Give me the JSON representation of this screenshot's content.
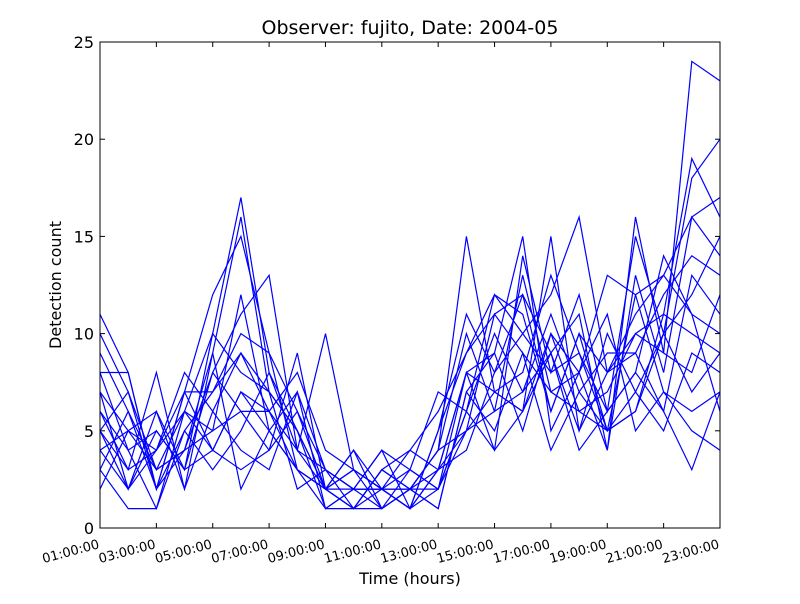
{
  "chart_data": {
    "type": "line",
    "title": "Observer: fujito, Date: 2004-05",
    "xlabel": "Time (hours)",
    "ylabel": "Detection count",
    "x_ticks": [
      "01:00:00",
      "03:00:00",
      "05:00:00",
      "07:00:00",
      "09:00:00",
      "11:00:00",
      "13:00:00",
      "15:00:00",
      "17:00:00",
      "19:00:00",
      "21:00:00",
      "23:00:00"
    ],
    "y_ticks": [
      0,
      5,
      10,
      15,
      20,
      25
    ],
    "xlim": [
      1,
      23
    ],
    "ylim": [
      0,
      25
    ],
    "grid": false,
    "legend": "none",
    "line_color": "#0000ff",
    "x": [
      1,
      2,
      3,
      4,
      5,
      6,
      7,
      8,
      9,
      10,
      11,
      12,
      13,
      14,
      15,
      16,
      17,
      18,
      19,
      20,
      21,
      22,
      23
    ],
    "series": [
      {
        "values": [
          11,
          8,
          2,
          4,
          9,
          16,
          7,
          5,
          2,
          3,
          1,
          2,
          1,
          7,
          9,
          15,
          5,
          8,
          4,
          16,
          9,
          24,
          23
        ]
      },
      {
        "values": [
          10,
          7,
          3,
          6,
          10,
          17,
          8,
          5,
          2,
          1,
          3,
          2,
          2,
          6,
          12,
          10,
          8,
          9,
          6,
          15,
          10,
          18,
          20
        ]
      },
      {
        "values": [
          8,
          8,
          2,
          7,
          12,
          15,
          9,
          6,
          3,
          2,
          2,
          1,
          3,
          5,
          11,
          9,
          7,
          6,
          5,
          12,
          13,
          16,
          17
        ]
      },
      {
        "values": [
          7,
          2,
          6,
          3,
          8,
          11,
          13,
          4,
          2,
          4,
          1,
          3,
          2,
          8,
          7,
          6,
          15,
          5,
          8,
          10,
          11,
          19,
          16
        ]
      },
      {
        "values": [
          6,
          4,
          1,
          5,
          7,
          10,
          9,
          3,
          1,
          2,
          4,
          1,
          5,
          11,
          8,
          12,
          9,
          11,
          4,
          13,
          8,
          16,
          14
        ]
      },
      {
        "values": [
          5,
          3,
          8,
          2,
          6,
          9,
          6,
          8,
          4,
          3,
          2,
          2,
          4,
          10,
          6,
          7,
          11,
          7,
          9,
          9,
          12,
          14,
          13
        ]
      },
      {
        "values": [
          4,
          2,
          5,
          3,
          10,
          8,
          7,
          2,
          3,
          1,
          3,
          4,
          6,
          9,
          12,
          11,
          6,
          10,
          5,
          7,
          10,
          12,
          15
        ]
      },
      {
        "values": [
          3,
          1,
          1,
          6,
          5,
          12,
          5,
          7,
          1,
          2,
          2,
          3,
          7,
          6,
          4,
          14,
          8,
          12,
          6,
          8,
          14,
          11,
          10
        ]
      },
      {
        "values": [
          2,
          5,
          4,
          7,
          4,
          7,
          6,
          3,
          2,
          4,
          2,
          1,
          3,
          8,
          9,
          5,
          10,
          6,
          7,
          10,
          9,
          8,
          12
        ]
      },
      {
        "values": [
          9,
          6,
          3,
          4,
          8,
          6,
          4,
          6,
          2,
          1,
          1,
          2,
          4,
          15,
          7,
          8,
          13,
          9,
          5,
          6,
          11,
          10,
          9
        ]
      },
      {
        "values": [
          5,
          7,
          2,
          5,
          3,
          5,
          8,
          4,
          10,
          3,
          2,
          1,
          2,
          5,
          6,
          13,
          7,
          8,
          11,
          5,
          7,
          6,
          7
        ]
      },
      {
        "values": [
          6,
          3,
          4,
          8,
          6,
          4,
          3,
          7,
          3,
          2,
          1,
          2,
          3,
          4,
          8,
          10,
          12,
          16,
          8,
          9,
          6,
          13,
          11
        ]
      },
      {
        "values": [
          4,
          5,
          6,
          2,
          9,
          2,
          5,
          3,
          2,
          2,
          4,
          3,
          2,
          6,
          10,
          7,
          9,
          5,
          10,
          7,
          5,
          9,
          8
        ]
      },
      {
        "values": [
          8,
          4,
          5,
          3,
          4,
          3,
          4,
          9,
          2,
          3,
          2,
          1,
          5,
          9,
          11,
          12,
          6,
          10,
          8,
          11,
          13,
          11,
          6
        ]
      },
      {
        "values": [
          3,
          6,
          2,
          7,
          7,
          9,
          7,
          5,
          1,
          1,
          3,
          2,
          1,
          7,
          5,
          9,
          4,
          7,
          5,
          6,
          10,
          7,
          9
        ]
      },
      {
        "values": [
          7,
          5,
          3,
          4,
          5,
          6,
          6,
          4,
          3,
          2,
          2,
          4,
          3,
          8,
          4,
          6,
          10,
          8,
          13,
          12,
          7,
          5,
          4
        ]
      },
      {
        "values": [
          5,
          2,
          4,
          6,
          4,
          7,
          5,
          3,
          2,
          1,
          2,
          2,
          4,
          5,
          7,
          6,
          9,
          4,
          6,
          8,
          6,
          3,
          7
        ]
      }
    ]
  }
}
